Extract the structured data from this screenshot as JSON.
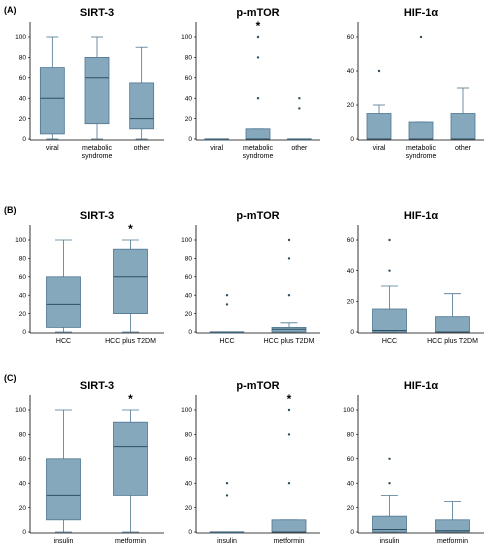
{
  "panels": [
    {
      "label": "(A)"
    },
    {
      "label": "(B)"
    },
    {
      "label": "(C)"
    }
  ],
  "colors": {
    "box_fill": "#86a8bd",
    "box_stroke": "#4d7691",
    "axis": "#000000"
  },
  "chart_data": [
    {
      "type": "box",
      "panel": 0,
      "title": "SIRT-3",
      "ylim": [
        0,
        100
      ],
      "yticks": [
        0,
        20,
        40,
        60,
        80,
        100
      ],
      "categories": [
        "viral",
        "metabolic\nsyndrome",
        "other"
      ],
      "boxes": [
        {
          "min": 0,
          "q1": 5,
          "median": 40,
          "q3": 70,
          "max": 100,
          "outliers": []
        },
        {
          "min": 0,
          "q1": 15,
          "median": 60,
          "q3": 80,
          "max": 100,
          "outliers": []
        },
        {
          "min": 0,
          "q1": 10,
          "median": 20,
          "q3": 55,
          "max": 90,
          "outliers": []
        }
      ],
      "significance": []
    },
    {
      "type": "box",
      "panel": 0,
      "title": "p-mTOR",
      "ylim": [
        0,
        100
      ],
      "yticks": [
        0,
        20,
        40,
        60,
        80,
        100
      ],
      "categories": [
        "viral",
        "metabolic\nsyndrome",
        "other"
      ],
      "boxes": [
        {
          "min": 0,
          "q1": 0,
          "median": 0,
          "q3": 0,
          "max": 0,
          "outliers": []
        },
        {
          "min": 0,
          "q1": 0,
          "median": 0,
          "q3": 10,
          "max": 10,
          "outliers": [
            40,
            80,
            100
          ]
        },
        {
          "min": 0,
          "q1": 0,
          "median": 0,
          "q3": 0,
          "max": 0,
          "outliers": [
            30,
            40
          ]
        }
      ],
      "significance": [
        1
      ]
    },
    {
      "type": "box",
      "panel": 0,
      "title": "HIF-1α",
      "ylim": [
        0,
        60
      ],
      "yticks": [
        0,
        20,
        40,
        60
      ],
      "categories": [
        "viral",
        "metabolic\nsyndrome",
        "other"
      ],
      "boxes": [
        {
          "min": 0,
          "q1": 0,
          "median": 0,
          "q3": 15,
          "max": 20,
          "outliers": [
            40
          ]
        },
        {
          "min": 0,
          "q1": 0,
          "median": 0,
          "q3": 10,
          "max": 10,
          "outliers": [
            60
          ]
        },
        {
          "min": 0,
          "q1": 0,
          "median": 0,
          "q3": 15,
          "max": 30,
          "outliers": []
        }
      ],
      "significance": []
    },
    {
      "type": "box",
      "panel": 1,
      "title": "SIRT-3",
      "ylim": [
        0,
        100
      ],
      "yticks": [
        0,
        20,
        40,
        60,
        80,
        100
      ],
      "categories": [
        "HCC",
        "HCC plus T2DM"
      ],
      "boxes": [
        {
          "min": 0,
          "q1": 5,
          "median": 30,
          "q3": 60,
          "max": 100,
          "outliers": []
        },
        {
          "min": 0,
          "q1": 20,
          "median": 60,
          "q3": 90,
          "max": 100,
          "outliers": []
        }
      ],
      "significance": [
        1
      ]
    },
    {
      "type": "box",
      "panel": 1,
      "title": "p-mTOR",
      "ylim": [
        0,
        100
      ],
      "yticks": [
        0,
        20,
        40,
        60,
        80,
        100
      ],
      "categories": [
        "HCC",
        "HCC plus T2DM"
      ],
      "boxes": [
        {
          "min": 0,
          "q1": 0,
          "median": 0,
          "q3": 0,
          "max": 0,
          "outliers": [
            30,
            40
          ]
        },
        {
          "min": 0,
          "q1": 0,
          "median": 3,
          "q3": 5,
          "max": 10,
          "outliers": [
            40,
            80,
            100
          ]
        }
      ],
      "significance": []
    },
    {
      "type": "box",
      "panel": 1,
      "title": "HIF-1α",
      "ylim": [
        0,
        60
      ],
      "yticks": [
        0,
        20,
        40,
        60
      ],
      "categories": [
        "HCC",
        "HCC plus T2DM"
      ],
      "boxes": [
        {
          "min": 0,
          "q1": 0,
          "median": 1,
          "q3": 15,
          "max": 30,
          "outliers": [
            40,
            60
          ]
        },
        {
          "min": 0,
          "q1": 0,
          "median": 0,
          "q3": 10,
          "max": 25,
          "outliers": []
        }
      ],
      "significance": []
    },
    {
      "type": "box",
      "panel": 2,
      "title": "SIRT-3",
      "ylim": [
        0,
        100
      ],
      "yticks": [
        0,
        20,
        40,
        60,
        80,
        100
      ],
      "categories": [
        "insulin",
        "metformin"
      ],
      "boxes": [
        {
          "min": 0,
          "q1": 10,
          "median": 30,
          "q3": 60,
          "max": 100,
          "outliers": []
        },
        {
          "min": 0,
          "q1": 30,
          "median": 70,
          "q3": 90,
          "max": 100,
          "outliers": []
        }
      ],
      "significance": [
        1
      ]
    },
    {
      "type": "box",
      "panel": 2,
      "title": "p-mTOR",
      "ylim": [
        0,
        100
      ],
      "yticks": [
        0,
        20,
        40,
        60,
        80,
        100
      ],
      "categories": [
        "insulin",
        "metformin"
      ],
      "boxes": [
        {
          "min": 0,
          "q1": 0,
          "median": 0,
          "q3": 0,
          "max": 0,
          "outliers": [
            30,
            40
          ]
        },
        {
          "min": 0,
          "q1": 0,
          "median": 0,
          "q3": 10,
          "max": 10,
          "outliers": [
            40,
            80,
            100
          ]
        }
      ],
      "significance": [
        1
      ]
    },
    {
      "type": "box",
      "panel": 2,
      "title": "HIF-1α",
      "ylim": [
        0,
        100
      ],
      "yticks": [
        0,
        20,
        40,
        60,
        80,
        100
      ],
      "categories": [
        "insulin",
        "metformin"
      ],
      "boxes": [
        {
          "min": 0,
          "q1": 0,
          "median": 2,
          "q3": 13,
          "max": 30,
          "outliers": [
            40,
            60
          ]
        },
        {
          "min": 0,
          "q1": 0,
          "median": 1,
          "q3": 10,
          "max": 25,
          "outliers": []
        }
      ],
      "significance": []
    }
  ]
}
